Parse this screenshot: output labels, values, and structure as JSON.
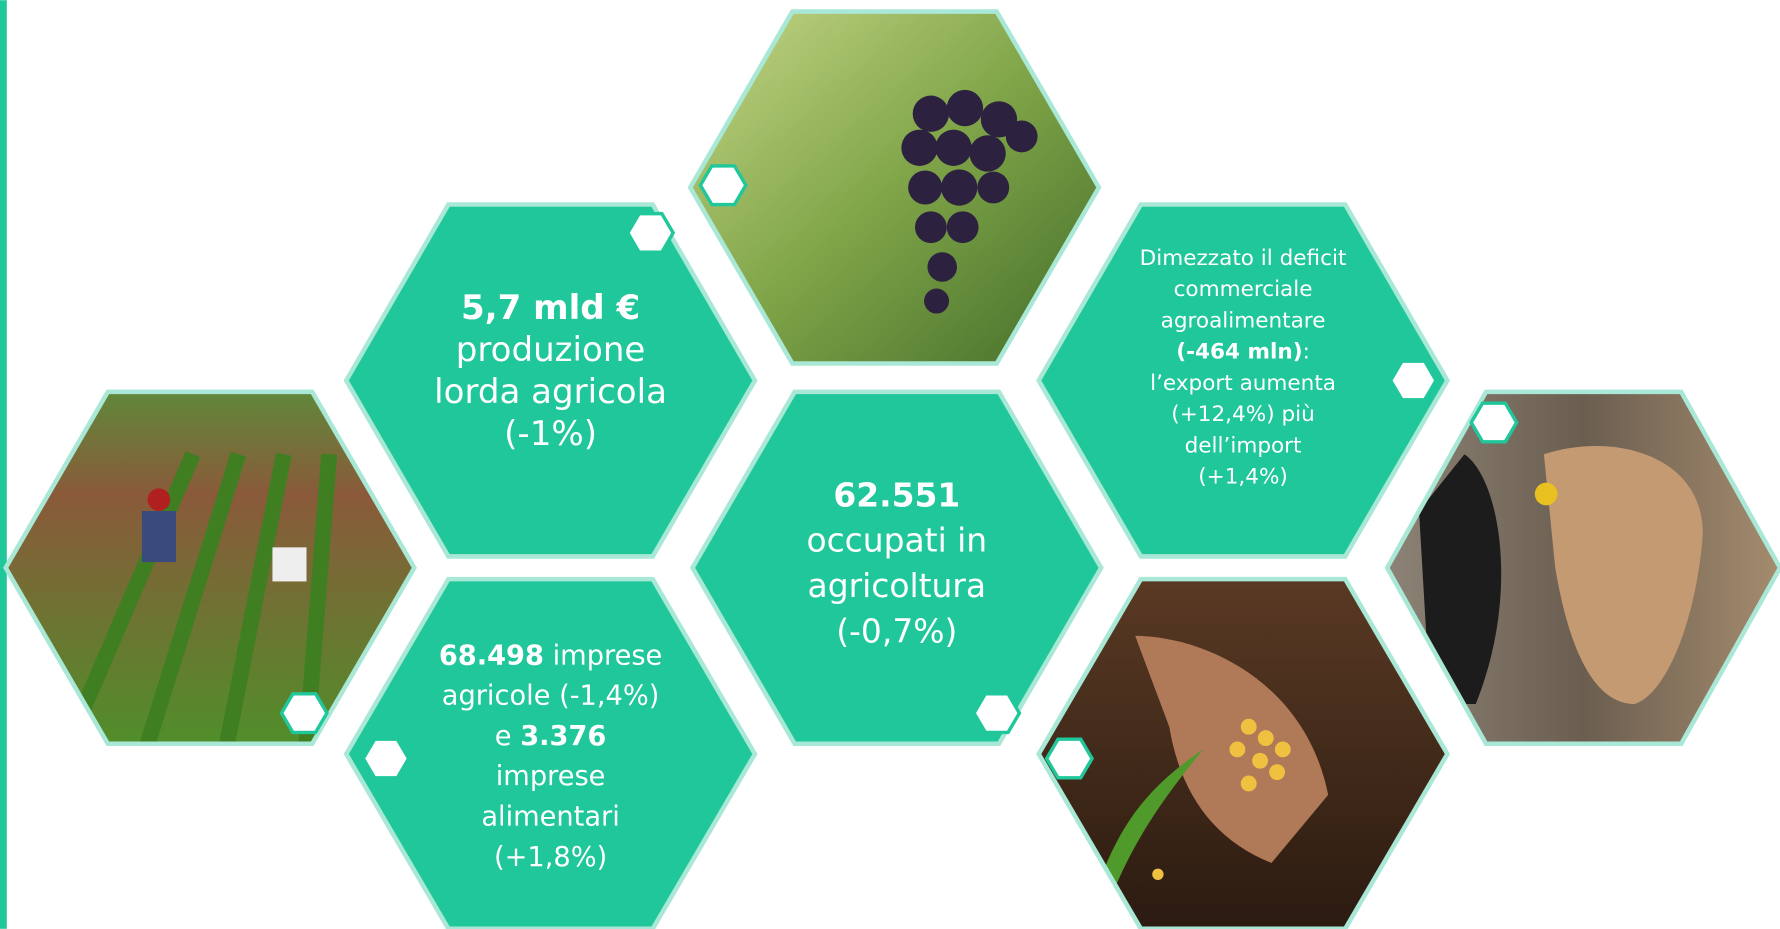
{
  "hexagons": [
    {
      "lines": [
        [
          {
            "text": "5,7 mld €",
            "bold": true
          }
        ],
        [
          {
            "text": "produzione",
            "bold": false
          }
        ],
        [
          {
            "text": "lorda agricola",
            "bold": false
          }
        ],
        [
          {
            "text": "(-1%)",
            "bold": false
          }
        ]
      ]
    },
    {
      "lines": [
        [
          {
            "text": "68.498",
            "bold": true
          },
          {
            "text": " imprese",
            "bold": false
          }
        ],
        [
          {
            "text": "agricole (-1,4%)",
            "bold": false
          }
        ],
        [
          {
            "text": "e ",
            "bold": false
          },
          {
            "text": "3.376",
            "bold": true
          }
        ],
        [
          {
            "text": "imprese",
            "bold": false
          }
        ],
        [
          {
            "text": "alimentari",
            "bold": false
          }
        ],
        [
          {
            "text": "(+1,8%)",
            "bold": false
          }
        ]
      ]
    },
    {
      "lines": [
        [
          {
            "text": "62.551",
            "bold": true
          }
        ],
        [
          {
            "text": "occupati in",
            "bold": false
          }
        ],
        [
          {
            "text": "agricoltura",
            "bold": false
          }
        ],
        [
          {
            "text": "(-0,7%)",
            "bold": false
          }
        ]
      ]
    },
    {
      "lines": [
        [
          {
            "text": "Dimezzato il deficit",
            "bold": false
          }
        ],
        [
          {
            "text": "commerciale",
            "bold": false
          }
        ],
        [
          {
            "text": "agroalimentare",
            "bold": false
          }
        ],
        [
          {
            "text": "(-464 mln)",
            "bold": true
          },
          {
            "text": ":",
            "bold": false
          }
        ],
        [
          {
            "text": "l’export aumenta",
            "bold": false
          }
        ],
        [
          {
            "text": "(+12,4%) più",
            "bold": false
          }
        ],
        [
          {
            "text": "dell’import",
            "bold": false
          }
        ],
        [
          {
            "text": "(+1,4%)",
            "bold": false
          }
        ]
      ]
    }
  ]
}
